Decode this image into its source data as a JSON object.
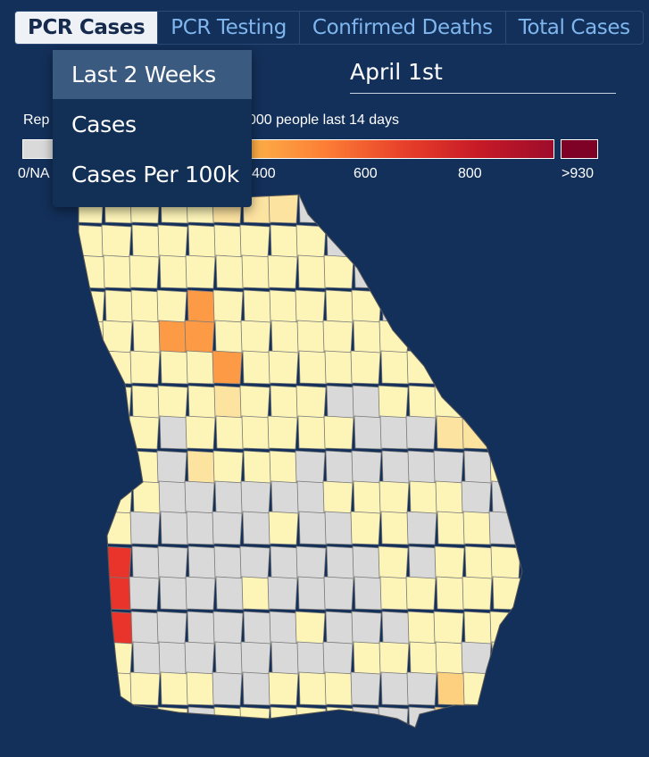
{
  "tabs": [
    "PCR Cases",
    "PCR Testing",
    "Confirmed Deaths",
    "Total Cases"
  ],
  "active_tab": "PCR Cases",
  "date": "April 1st",
  "legend": {
    "title_visible_start": "Rep",
    "title_visible_end": "000 people last 14 days",
    "ticks": [
      "0/NA",
      "400",
      "600",
      "800",
      ">930"
    ],
    "na_color": "#d9d9d9",
    "gradient_colors": [
      "#fdb048",
      "#fc7d35",
      "#e8412a",
      "#c71a27",
      "#9e0c2b"
    ],
    "max_color": "#7e0226"
  },
  "dropdown": {
    "items": [
      "Last 2 Weeks",
      "Cases",
      "Cases Per 100k"
    ],
    "highlighted": "Last 2 Weeks"
  },
  "map": {
    "region": "Georgia counties",
    "colors": {
      "background": "#13305a",
      "no_data": "#d9d9d9",
      "very_low": "#fdf5b8",
      "low": "#fde3a0",
      "medium": "#fdd080",
      "high": "#fc9a45",
      "very_high": "#e8342a",
      "max": "#7e0226",
      "border": "#777777"
    }
  }
}
